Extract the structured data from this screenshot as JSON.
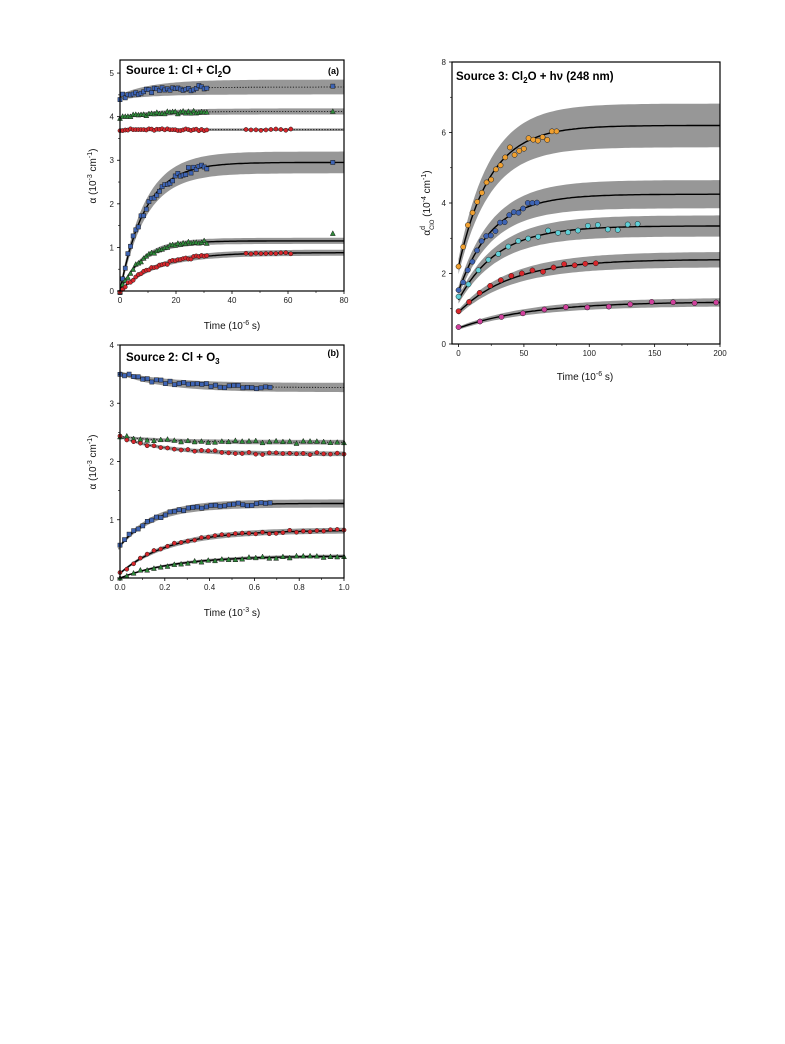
{
  "chart_data": [
    {
      "id": "a",
      "type": "scatter",
      "title": "Source 1: Cl + Cl2O",
      "title_parts": {
        "pre": "Source 1: Cl + Cl",
        "sub": "2",
        "post": "O"
      },
      "panel_label": "(a)",
      "xlabel": "Time (10-6 s)",
      "xlabel_parts": {
        "pre": "Time (10",
        "sup": "-6",
        "post": " s)"
      },
      "ylabel": "α (10-3 cm-1)",
      "ylabel_parts": {
        "a": "α (10",
        "b": "-3",
        "c": " cm",
        "d": "-1",
        "e": ")"
      },
      "xlim": [
        0,
        80
      ],
      "ylim": [
        0,
        5.3
      ],
      "xticks": [
        "0",
        "20",
        "40",
        "60",
        "80"
      ],
      "yticks": [
        "0",
        "1",
        "2",
        "3",
        "4",
        "5"
      ],
      "band_color": "#8c8c8c",
      "series": [
        {
          "marker": "square",
          "color": "#3e64b4",
          "kind": "rise",
          "start": 4.45,
          "end": 4.68,
          "tau": 12,
          "band": 0.17,
          "line": "dotted",
          "data_x": [
            0,
            31
          ],
          "extra": [
            [
              76,
              4.7
            ]
          ]
        },
        {
          "marker": "triangle",
          "color": "#2e8b3a",
          "kind": "rise",
          "start": 3.98,
          "end": 4.12,
          "tau": 12,
          "band": 0.07,
          "line": "dotted",
          "data_x": [
            0,
            31
          ],
          "extra": [
            [
              76,
              4.12
            ]
          ]
        },
        {
          "marker": "circle",
          "color": "#d8262b",
          "kind": "flat",
          "start": 3.7,
          "end": 3.7,
          "tau": 10,
          "band": 0.03,
          "line": "dotted",
          "data_x": [
            0,
            31
          ],
          "extra_range": [
            45,
            61
          ]
        },
        {
          "marker": "square",
          "color": "#3e64b4",
          "kind": "rise",
          "start": 0.0,
          "end": 2.95,
          "tau": 9,
          "band": 0.25,
          "line": "solid",
          "data_x": [
            0,
            31
          ],
          "extra": [
            [
              76,
              2.95
            ]
          ]
        },
        {
          "marker": "triangle",
          "color": "#2e8b3a",
          "kind": "rise",
          "start": 0.0,
          "end": 1.15,
          "tau": 8,
          "band": 0.07,
          "line": "solid",
          "data_x": [
            0,
            31
          ],
          "extra": [
            [
              76,
              1.32
            ]
          ]
        },
        {
          "marker": "circle",
          "color": "#d8262b",
          "kind": "rise",
          "start": 0.0,
          "end": 0.88,
          "tau": 13,
          "band": 0.07,
          "line": "solid",
          "data_x": [
            0,
            31
          ],
          "extra_range": [
            45,
            61
          ]
        }
      ]
    },
    {
      "id": "b",
      "type": "scatter",
      "title": "Source 2: Cl + O3",
      "title_parts": {
        "pre": "Source 2: Cl + O",
        "sub": "3",
        "post": ""
      },
      "panel_label": "(b)",
      "xlabel": "Time (10-3 s)",
      "xlabel_parts": {
        "pre": "Time (10",
        "sup": "-3",
        "post": " s)"
      },
      "ylabel": "α (10-3 cm-1)",
      "ylabel_parts": {
        "a": "α (10",
        "b": "-3",
        "c": " cm",
        "d": "-1",
        "e": ")"
      },
      "xlim": [
        0,
        1.0
      ],
      "ylim": [
        0,
        4.0
      ],
      "xticks": [
        "0.0",
        "0.2",
        "0.4",
        "0.6",
        "0.8",
        "1.0"
      ],
      "yticks": [
        "0",
        "1",
        "2",
        "3",
        "4"
      ],
      "band_color": "#8c8c8c",
      "series": [
        {
          "marker": "square",
          "color": "#3e64b4",
          "kind": "decay",
          "start": 3.52,
          "end": 3.27,
          "tau": 0.2,
          "band": 0.08,
          "line": "dotted",
          "data_x": [
            0,
            0.67
          ]
        },
        {
          "marker": "triangle",
          "color": "#2e8b3a",
          "kind": "decay",
          "start": 2.43,
          "end": 2.33,
          "tau": 0.2,
          "band": 0.04,
          "line": "dotted",
          "data_x": [
            0,
            1.0
          ]
        },
        {
          "marker": "circle",
          "color": "#d8262b",
          "kind": "decay",
          "start": 2.42,
          "end": 2.13,
          "tau": 0.2,
          "band": 0.04,
          "line": "dotted",
          "data_x": [
            0,
            1.0
          ]
        },
        {
          "marker": "square",
          "color": "#3e64b4",
          "kind": "rise",
          "start": 0.55,
          "end": 1.28,
          "tau": 0.15,
          "band": 0.07,
          "line": "solid",
          "data_x": [
            0,
            0.67
          ]
        },
        {
          "marker": "circle",
          "color": "#d8262b",
          "kind": "rise",
          "start": 0.08,
          "end": 0.82,
          "tau": 0.22,
          "band": 0.05,
          "line": "solid",
          "data_x": [
            0,
            1.0
          ]
        },
        {
          "marker": "triangle",
          "color": "#2e8b3a",
          "kind": "rise",
          "start": 0.0,
          "end": 0.38,
          "tau": 0.25,
          "band": 0.03,
          "line": "solid",
          "data_x": [
            0,
            1.0
          ]
        }
      ]
    },
    {
      "id": "c",
      "type": "scatter",
      "title": "Source 3: Cl2O + hν (248 nm)",
      "title_parts": {
        "pre": "Source 3:  Cl",
        "sub": "2",
        "post": "O + hν (248 nm)"
      },
      "panel_label": "",
      "xlabel": "Time (10-6 s)",
      "xlabel_parts": {
        "pre": "Time (10",
        "sup": "-6",
        "post": " s)"
      },
      "ylabel": "αdClO (10-4 cm-1)",
      "ylabel_parts": {
        "a": "α",
        "b": "d",
        "bsub": "ClO",
        "c": " (10",
        "d": "-4",
        "e": " cm",
        "f": "-1",
        "g": ")"
      },
      "xlim": [
        -5,
        200
      ],
      "ylim": [
        0,
        8
      ],
      "xticks": [
        "0",
        "50",
        "100",
        "150",
        "200"
      ],
      "yticks": [
        "0",
        "2",
        "4",
        "6",
        "8"
      ],
      "band_color": "#8c8c8c",
      "series": [
        {
          "marker": "circle",
          "color": "#f0a030",
          "kind": "rise",
          "start": 2.2,
          "end": 6.2,
          "tau": 24,
          "band": 0.62,
          "line": "solid",
          "data_x": [
            0,
            75
          ],
          "n": 22
        },
        {
          "marker": "circle",
          "color": "#3e64b4",
          "kind": "rise",
          "start": 1.5,
          "end": 4.25,
          "tau": 26,
          "band": 0.4,
          "line": "solid",
          "data_x": [
            0,
            60
          ],
          "n": 18
        },
        {
          "marker": "circle",
          "color": "#5fd0d8",
          "kind": "rise",
          "start": 1.25,
          "end": 3.35,
          "tau": 30,
          "band": 0.3,
          "line": "solid",
          "data_x": [
            0,
            137
          ],
          "n": 19
        },
        {
          "marker": "circle",
          "color": "#d8262b",
          "kind": "rise",
          "start": 0.9,
          "end": 2.4,
          "tau": 40,
          "band": 0.22,
          "line": "solid",
          "data_x": [
            0,
            105
          ],
          "n": 14
        },
        {
          "marker": "circle",
          "color": "#d0409c",
          "kind": "rise",
          "start": 0.45,
          "end": 1.2,
          "tau": 55,
          "band": 0.12,
          "line": "solid",
          "data_x": [
            0,
            197
          ],
          "n": 13
        }
      ]
    }
  ]
}
